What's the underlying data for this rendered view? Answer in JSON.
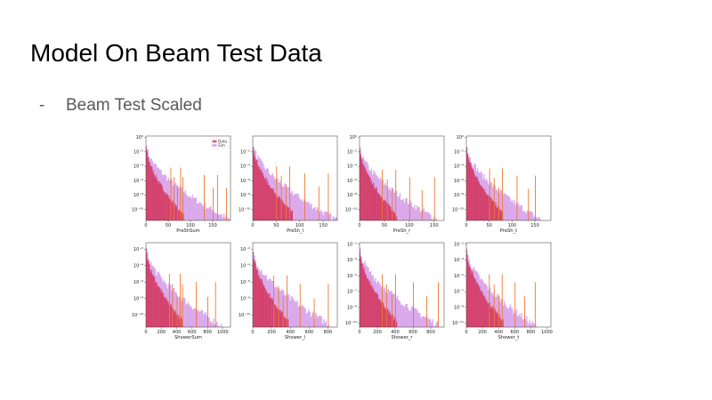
{
  "slide": {
    "title": "Model On Beam Test Data",
    "bullet_dash": "-",
    "bullet_text": "Beam Test Scaled"
  },
  "colors": {
    "data": "#e8516a",
    "sim": "#d49be8",
    "overlap": "#d2335a",
    "spike": "#f07830"
  },
  "chart_data": [
    {
      "type": "bar",
      "xlabel": "PreShSum",
      "xticks": [
        0,
        50,
        100,
        150
      ],
      "xlim": [
        0,
        190
      ],
      "ylog": true,
      "ytick_exps": [
        0,
        -2,
        -4,
        -6,
        -8,
        -10
      ],
      "ylim_exp": [
        -11.5,
        0.2
      ],
      "legend": [
        "Data",
        "Sim"
      ],
      "legend_position": "top-right",
      "series": [
        {
          "name": "Data",
          "x_end": 85,
          "y0_exp": -1.2,
          "tail_exp": -10.8,
          "spikes": [
            55,
            62,
            70,
            77,
            82
          ]
        },
        {
          "name": "Sim",
          "x_end": 190,
          "y0_exp": -1.2,
          "tail_exp": -11.5,
          "spikes": [
            130,
            150,
            160,
            180
          ]
        }
      ]
    },
    {
      "type": "bar",
      "xlabel": "PreSh_l",
      "xticks": [
        0,
        50,
        100,
        150
      ],
      "xlim": [
        0,
        180
      ],
      "ylog": true,
      "ytick_exps": [
        -2,
        -4,
        -6,
        -8,
        -10
      ],
      "ylim_exp": [
        -11.5,
        0.2
      ],
      "series": [
        {
          "name": "Data",
          "x_end": 85,
          "y0_exp": -1.0,
          "tail_exp": -10.5,
          "spikes": [
            50,
            60,
            70,
            78
          ]
        },
        {
          "name": "Sim",
          "x_end": 180,
          "y0_exp": -1.0,
          "tail_exp": -11.5,
          "spikes": [
            110,
            140,
            160
          ]
        }
      ]
    },
    {
      "type": "bar",
      "xlabel": "PreSh_r",
      "xticks": [
        0,
        50,
        100,
        150
      ],
      "xlim": [
        0,
        170
      ],
      "ylog": true,
      "ytick_exps": [
        0,
        -2,
        -4,
        -6,
        -8,
        -10
      ],
      "ylim_exp": [
        -11.5,
        0.2
      ],
      "series": [
        {
          "name": "Data",
          "x_end": 75,
          "y0_exp": -1.5,
          "tail_exp": -10.8,
          "spikes": [
            45,
            55,
            65,
            72
          ]
        },
        {
          "name": "Sim",
          "x_end": 160,
          "y0_exp": -1.5,
          "tail_exp": -11.5,
          "spikes": [
            100,
            125,
            150
          ]
        }
      ]
    },
    {
      "type": "bar",
      "xlabel": "PreSh_t",
      "xticks": [
        0,
        50,
        100,
        150
      ],
      "xlim": [
        0,
        185
      ],
      "ylog": true,
      "ytick_exps": [
        0,
        -2,
        -4,
        -6,
        -8,
        -10
      ],
      "ylim_exp": [
        -11.5,
        0.2
      ],
      "series": [
        {
          "name": "Data",
          "x_end": 80,
          "y0_exp": -1.3,
          "tail_exp": -10.5,
          "spikes": [
            50,
            60,
            70,
            78
          ]
        },
        {
          "name": "Sim",
          "x_end": 165,
          "y0_exp": -1.3,
          "tail_exp": -11.5,
          "spikes": [
            110,
            135,
            150
          ]
        }
      ]
    },
    {
      "type": "bar",
      "xlabel": "ShowerSum",
      "xticks": [
        0,
        200,
        400,
        600,
        800,
        1000
      ],
      "xlim": [
        0,
        1100
      ],
      "ylog": true,
      "ytick_exps": [
        -2,
        -4,
        -6,
        -8,
        -10
      ],
      "ylim_exp": [
        -11.5,
        -1.2
      ],
      "series": [
        {
          "name": "Data",
          "x_end": 480,
          "y0_exp": -2.0,
          "tail_exp": -10.8,
          "spikes": [
            300,
            340,
            400,
            440,
            470
          ]
        },
        {
          "name": "Sim",
          "x_end": 1000,
          "y0_exp": -2.0,
          "tail_exp": -11.5,
          "spikes": [
            650,
            800,
            900
          ]
        }
      ]
    },
    {
      "type": "bar",
      "xlabel": "Shower_l",
      "xticks": [
        0,
        200,
        400,
        600,
        800
      ],
      "xlim": [
        0,
        900
      ],
      "ylog": true,
      "ytick_exps": [
        -2,
        -4,
        -6,
        -8,
        -10
      ],
      "ylim_exp": [
        -11.5,
        -1.2
      ],
      "series": [
        {
          "name": "Data",
          "x_end": 380,
          "y0_exp": -2.2,
          "tail_exp": -10.8,
          "spikes": [
            220,
            270,
            320,
            360
          ]
        },
        {
          "name": "Sim",
          "x_end": 860,
          "y0_exp": -2.2,
          "tail_exp": -11.5,
          "spikes": [
            500,
            650,
            800
          ]
        }
      ]
    },
    {
      "type": "bar",
      "xlabel": "Shower_r",
      "xticks": [
        0,
        200,
        400,
        600,
        800
      ],
      "xlim": [
        0,
        950
      ],
      "ylog": true,
      "ytick_exps": [
        -1,
        -3,
        -5,
        -7,
        -9,
        -11
      ],
      "ylim_exp": [
        -11.5,
        -0.8
      ],
      "series": [
        {
          "name": "Data",
          "x_end": 420,
          "y0_exp": -1.8,
          "tail_exp": -10.8,
          "spikes": [
            250,
            300,
            360,
            400
          ]
        },
        {
          "name": "Sim",
          "x_end": 920,
          "y0_exp": -1.8,
          "tail_exp": -11.5,
          "spikes": [
            600,
            750,
            880
          ]
        }
      ]
    },
    {
      "type": "bar",
      "xlabel": "Shower_t",
      "xticks": [
        0,
        200,
        400,
        600,
        800,
        1000
      ],
      "xlim": [
        0,
        1050
      ],
      "ylog": true,
      "ytick_exps": [
        -1,
        -3,
        -5,
        -7,
        -9,
        -11
      ],
      "ylim_exp": [
        -11.5,
        -0.8
      ],
      "series": [
        {
          "name": "Data",
          "x_end": 460,
          "y0_exp": -1.8,
          "tail_exp": -10.8,
          "spikes": [
            280,
            340,
            400,
            440
          ]
        },
        {
          "name": "Sim",
          "x_end": 880,
          "y0_exp": -1.8,
          "tail_exp": -11.5,
          "spikes": [
            600,
            720,
            850
          ]
        }
      ]
    }
  ]
}
